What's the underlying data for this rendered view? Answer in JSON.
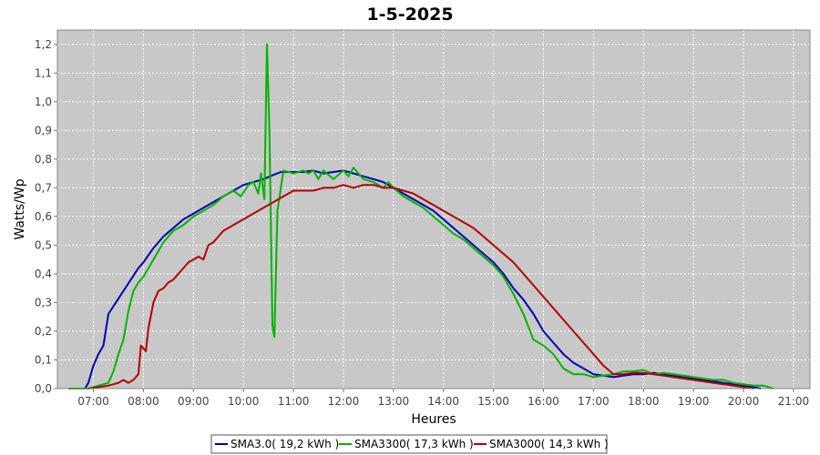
{
  "chart_data": {
    "type": "line",
    "title": "1-5-2025",
    "xlabel": "Heures",
    "ylabel": "Watts/Wp",
    "x_unit": "hour",
    "xlim": [
      6.28,
      21.33
    ],
    "ylim": [
      0,
      1.25
    ],
    "x_ticks": [
      {
        "value": 7,
        "label": "07:00"
      },
      {
        "value": 8,
        "label": "08:00"
      },
      {
        "value": 9,
        "label": "09:00"
      },
      {
        "value": 10,
        "label": "10:00"
      },
      {
        "value": 11,
        "label": "11:00"
      },
      {
        "value": 12,
        "label": "12:00"
      },
      {
        "value": 13,
        "label": "13:00"
      },
      {
        "value": 14,
        "label": "14:00"
      },
      {
        "value": 15,
        "label": "15:00"
      },
      {
        "value": 16,
        "label": "16:00"
      },
      {
        "value": 17,
        "label": "17:00"
      },
      {
        "value": 18,
        "label": "18:00"
      },
      {
        "value": 19,
        "label": "19:00"
      },
      {
        "value": 20,
        "label": "20:00"
      },
      {
        "value": 21,
        "label": "21:00"
      }
    ],
    "y_ticks": [
      {
        "value": 0.0,
        "label": "0,0"
      },
      {
        "value": 0.1,
        "label": "0,1"
      },
      {
        "value": 0.2,
        "label": "0,2"
      },
      {
        "value": 0.3,
        "label": "0,3"
      },
      {
        "value": 0.4,
        "label": "0,4"
      },
      {
        "value": 0.5,
        "label": "0,5"
      },
      {
        "value": 0.6,
        "label": "0,6"
      },
      {
        "value": 0.7,
        "label": "0,7"
      },
      {
        "value": 0.8,
        "label": "0,8"
      },
      {
        "value": 0.9,
        "label": "0,9"
      },
      {
        "value": 1.0,
        "label": "1,0"
      },
      {
        "value": 1.1,
        "label": "1,1"
      },
      {
        "value": 1.2,
        "label": "1,2"
      }
    ],
    "grid": true,
    "legend_position": "bottom",
    "background": "#c8c8c8",
    "series": [
      {
        "name": "SMA3.0( 19,2 kWh )",
        "color": "#0000b4",
        "points": [
          [
            6.83,
            0.0
          ],
          [
            6.9,
            0.02
          ],
          [
            7.0,
            0.08
          ],
          [
            7.1,
            0.12
          ],
          [
            7.2,
            0.15
          ],
          [
            7.3,
            0.26
          ],
          [
            7.45,
            0.3
          ],
          [
            7.6,
            0.34
          ],
          [
            7.75,
            0.38
          ],
          [
            7.9,
            0.42
          ],
          [
            8.0,
            0.44
          ],
          [
            8.2,
            0.49
          ],
          [
            8.4,
            0.53
          ],
          [
            8.6,
            0.56
          ],
          [
            8.8,
            0.59
          ],
          [
            9.0,
            0.61
          ],
          [
            9.2,
            0.63
          ],
          [
            9.4,
            0.65
          ],
          [
            9.6,
            0.67
          ],
          [
            9.8,
            0.69
          ],
          [
            10.0,
            0.71
          ],
          [
            10.2,
            0.72
          ],
          [
            10.4,
            0.73
          ],
          [
            10.6,
            0.745
          ],
          [
            10.75,
            0.755
          ],
          [
            11.0,
            0.755
          ],
          [
            11.2,
            0.755
          ],
          [
            11.4,
            0.76
          ],
          [
            11.6,
            0.75
          ],
          [
            11.8,
            0.755
          ],
          [
            12.0,
            0.76
          ],
          [
            12.2,
            0.75
          ],
          [
            12.4,
            0.74
          ],
          [
            12.6,
            0.73
          ],
          [
            12.8,
            0.72
          ],
          [
            13.0,
            0.7
          ],
          [
            13.2,
            0.68
          ],
          [
            13.4,
            0.66
          ],
          [
            13.6,
            0.64
          ],
          [
            13.8,
            0.62
          ],
          [
            14.0,
            0.59
          ],
          [
            14.2,
            0.56
          ],
          [
            14.4,
            0.53
          ],
          [
            14.6,
            0.5
          ],
          [
            14.8,
            0.47
          ],
          [
            15.0,
            0.44
          ],
          [
            15.2,
            0.4
          ],
          [
            15.4,
            0.35
          ],
          [
            15.6,
            0.31
          ],
          [
            15.8,
            0.26
          ],
          [
            16.0,
            0.2
          ],
          [
            16.2,
            0.16
          ],
          [
            16.4,
            0.12
          ],
          [
            16.6,
            0.09
          ],
          [
            16.8,
            0.07
          ],
          [
            17.0,
            0.05
          ],
          [
            17.2,
            0.045
          ],
          [
            17.4,
            0.04
          ],
          [
            17.6,
            0.045
          ],
          [
            17.8,
            0.05
          ],
          [
            18.0,
            0.05
          ],
          [
            18.2,
            0.055
          ],
          [
            18.4,
            0.05
          ],
          [
            18.6,
            0.045
          ],
          [
            18.8,
            0.04
          ],
          [
            19.0,
            0.035
          ],
          [
            19.2,
            0.03
          ],
          [
            19.4,
            0.025
          ],
          [
            19.6,
            0.02
          ],
          [
            19.8,
            0.015
          ],
          [
            20.0,
            0.01
          ],
          [
            20.2,
            0.005
          ],
          [
            20.35,
            0.0
          ]
        ]
      },
      {
        "name": "SMA3300( 17,3 kWh )",
        "color": "#00b400",
        "points": [
          [
            6.5,
            0.0
          ],
          [
            6.9,
            0.0
          ],
          [
            7.1,
            0.01
          ],
          [
            7.3,
            0.02
          ],
          [
            7.4,
            0.06
          ],
          [
            7.5,
            0.12
          ],
          [
            7.6,
            0.17
          ],
          [
            7.7,
            0.27
          ],
          [
            7.8,
            0.34
          ],
          [
            7.9,
            0.37
          ],
          [
            8.0,
            0.39
          ],
          [
            8.2,
            0.45
          ],
          [
            8.4,
            0.51
          ],
          [
            8.6,
            0.55
          ],
          [
            8.8,
            0.57
          ],
          [
            9.0,
            0.6
          ],
          [
            9.2,
            0.62
          ],
          [
            9.4,
            0.64
          ],
          [
            9.6,
            0.67
          ],
          [
            9.8,
            0.69
          ],
          [
            9.95,
            0.67
          ],
          [
            10.1,
            0.71
          ],
          [
            10.2,
            0.72
          ],
          [
            10.3,
            0.68
          ],
          [
            10.35,
            0.75
          ],
          [
            10.42,
            0.66
          ],
          [
            10.47,
            1.2
          ],
          [
            10.52,
            0.9
          ],
          [
            10.58,
            0.22
          ],
          [
            10.62,
            0.18
          ],
          [
            10.68,
            0.62
          ],
          [
            10.8,
            0.76
          ],
          [
            11.0,
            0.75
          ],
          [
            11.2,
            0.76
          ],
          [
            11.3,
            0.75
          ],
          [
            11.4,
            0.76
          ],
          [
            11.5,
            0.73
          ],
          [
            11.6,
            0.76
          ],
          [
            11.8,
            0.73
          ],
          [
            12.0,
            0.76
          ],
          [
            12.1,
            0.74
          ],
          [
            12.2,
            0.77
          ],
          [
            12.4,
            0.73
          ],
          [
            12.6,
            0.72
          ],
          [
            12.8,
            0.7
          ],
          [
            12.9,
            0.72
          ],
          [
            13.0,
            0.7
          ],
          [
            13.2,
            0.67
          ],
          [
            13.4,
            0.65
          ],
          [
            13.6,
            0.63
          ],
          [
            13.8,
            0.6
          ],
          [
            14.0,
            0.57
          ],
          [
            14.2,
            0.54
          ],
          [
            14.4,
            0.52
          ],
          [
            14.6,
            0.49
          ],
          [
            14.8,
            0.46
          ],
          [
            15.0,
            0.43
          ],
          [
            15.2,
            0.39
          ],
          [
            15.4,
            0.33
          ],
          [
            15.6,
            0.26
          ],
          [
            15.8,
            0.17
          ],
          [
            16.0,
            0.15
          ],
          [
            16.2,
            0.12
          ],
          [
            16.4,
            0.07
          ],
          [
            16.6,
            0.05
          ],
          [
            16.8,
            0.05
          ],
          [
            17.0,
            0.04
          ],
          [
            17.2,
            0.045
          ],
          [
            17.4,
            0.05
          ],
          [
            17.6,
            0.06
          ],
          [
            17.8,
            0.06
          ],
          [
            18.0,
            0.065
          ],
          [
            18.2,
            0.05
          ],
          [
            18.4,
            0.055
          ],
          [
            18.6,
            0.05
          ],
          [
            18.8,
            0.045
          ],
          [
            19.0,
            0.04
          ],
          [
            19.2,
            0.035
          ],
          [
            19.4,
            0.03
          ],
          [
            19.6,
            0.03
          ],
          [
            19.8,
            0.02
          ],
          [
            20.0,
            0.015
          ],
          [
            20.2,
            0.01
          ],
          [
            20.4,
            0.01
          ],
          [
            20.6,
            0.0
          ]
        ]
      },
      {
        "name": "SMA3000( 14,3 kWh )",
        "color": "#b40000",
        "points": [
          [
            6.9,
            0.0
          ],
          [
            7.1,
            0.005
          ],
          [
            7.3,
            0.01
          ],
          [
            7.5,
            0.02
          ],
          [
            7.6,
            0.03
          ],
          [
            7.7,
            0.02
          ],
          [
            7.8,
            0.03
          ],
          [
            7.9,
            0.05
          ],
          [
            7.95,
            0.15
          ],
          [
            8.05,
            0.13
          ],
          [
            8.1,
            0.21
          ],
          [
            8.2,
            0.3
          ],
          [
            8.3,
            0.34
          ],
          [
            8.4,
            0.35
          ],
          [
            8.5,
            0.37
          ],
          [
            8.6,
            0.38
          ],
          [
            8.7,
            0.4
          ],
          [
            8.8,
            0.42
          ],
          [
            8.9,
            0.44
          ],
          [
            9.0,
            0.45
          ],
          [
            9.1,
            0.46
          ],
          [
            9.2,
            0.45
          ],
          [
            9.3,
            0.5
          ],
          [
            9.4,
            0.51
          ],
          [
            9.6,
            0.55
          ],
          [
            9.8,
            0.57
          ],
          [
            10.0,
            0.59
          ],
          [
            10.2,
            0.61
          ],
          [
            10.4,
            0.63
          ],
          [
            10.6,
            0.65
          ],
          [
            10.8,
            0.67
          ],
          [
            11.0,
            0.69
          ],
          [
            11.2,
            0.69
          ],
          [
            11.4,
            0.69
          ],
          [
            11.6,
            0.7
          ],
          [
            11.8,
            0.7
          ],
          [
            12.0,
            0.71
          ],
          [
            12.2,
            0.7
          ],
          [
            12.4,
            0.71
          ],
          [
            12.6,
            0.71
          ],
          [
            12.8,
            0.7
          ],
          [
            13.0,
            0.7
          ],
          [
            13.2,
            0.69
          ],
          [
            13.4,
            0.68
          ],
          [
            13.6,
            0.66
          ],
          [
            13.8,
            0.64
          ],
          [
            14.0,
            0.62
          ],
          [
            14.2,
            0.6
          ],
          [
            14.4,
            0.58
          ],
          [
            14.6,
            0.56
          ],
          [
            14.8,
            0.53
          ],
          [
            15.0,
            0.5
          ],
          [
            15.2,
            0.47
          ],
          [
            15.4,
            0.44
          ],
          [
            15.6,
            0.4
          ],
          [
            15.8,
            0.36
          ],
          [
            16.0,
            0.32
          ],
          [
            16.2,
            0.28
          ],
          [
            16.4,
            0.24
          ],
          [
            16.6,
            0.2
          ],
          [
            16.8,
            0.16
          ],
          [
            17.0,
            0.12
          ],
          [
            17.2,
            0.08
          ],
          [
            17.4,
            0.05
          ],
          [
            17.6,
            0.05
          ],
          [
            17.8,
            0.055
          ],
          [
            18.0,
            0.055
          ],
          [
            18.2,
            0.05
          ],
          [
            18.4,
            0.045
          ],
          [
            18.6,
            0.04
          ],
          [
            18.8,
            0.035
          ],
          [
            19.0,
            0.03
          ],
          [
            19.2,
            0.025
          ],
          [
            19.4,
            0.02
          ],
          [
            19.6,
            0.015
          ],
          [
            19.8,
            0.01
          ],
          [
            20.0,
            0.005
          ],
          [
            20.2,
            0.0
          ]
        ]
      }
    ]
  }
}
